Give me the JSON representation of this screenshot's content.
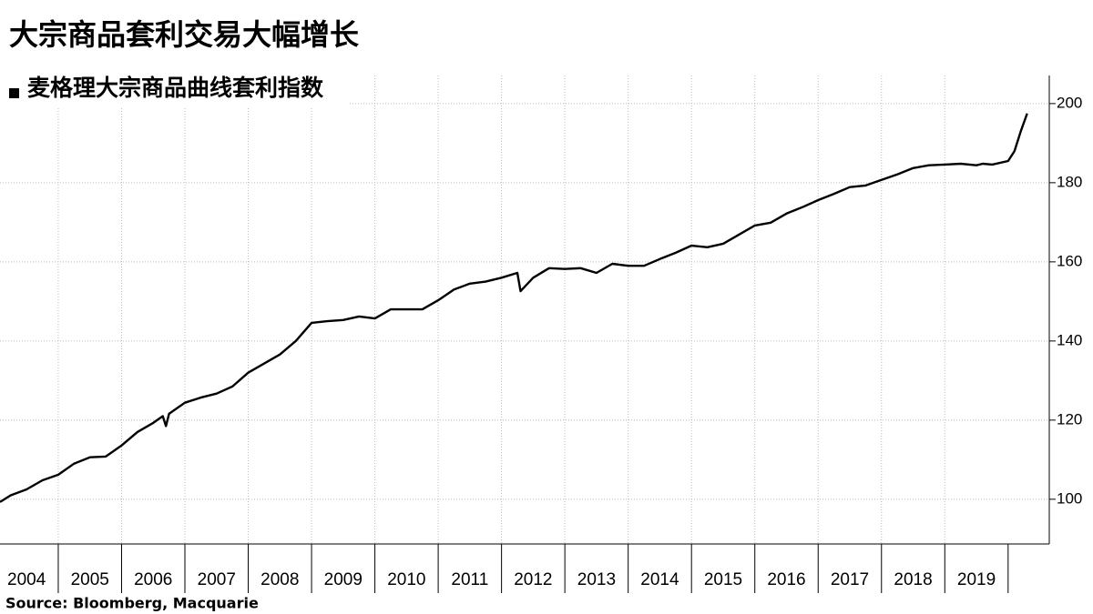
{
  "chart_data": {
    "type": "line",
    "title": "大宗商品套利交易大幅增长",
    "source": "Source:  Bloomberg, Macquarie",
    "x": [
      2004.08,
      2004.25,
      2004.5,
      2004.75,
      2005.0,
      2005.25,
      2005.5,
      2005.75,
      2006.0,
      2006.25,
      2006.5,
      2006.65,
      2006.7,
      2006.75,
      2007.0,
      2007.25,
      2007.5,
      2007.75,
      2008.0,
      2008.25,
      2008.5,
      2008.75,
      2009.0,
      2009.25,
      2009.5,
      2009.75,
      2010.0,
      2010.25,
      2010.5,
      2010.75,
      2011.0,
      2011.25,
      2011.5,
      2011.75,
      2012.0,
      2012.25,
      2012.3,
      2012.5,
      2012.75,
      2013.0,
      2013.25,
      2013.5,
      2013.75,
      2014.0,
      2014.25,
      2014.5,
      2014.75,
      2015.0,
      2015.25,
      2015.5,
      2015.75,
      2016.0,
      2016.25,
      2016.5,
      2016.75,
      2017.0,
      2017.25,
      2017.5,
      2017.75,
      2018.0,
      2018.25,
      2018.5,
      2018.75,
      2019.0,
      2019.25,
      2019.5,
      2019.6,
      2019.75,
      2020.0,
      2020.1,
      2020.2,
      2020.3
    ],
    "series": [
      {
        "name": "麦格理大宗商品曲线套利指数",
        "color": "#000000",
        "values": [
          99.3,
          101,
          102.5,
          104.8,
          106.2,
          109,
          110.6,
          110.8,
          113.6,
          117,
          119.3,
          121,
          118.5,
          121.6,
          124.4,
          125.7,
          126.7,
          128.5,
          132,
          134.3,
          136.6,
          140,
          144.6,
          145,
          145.3,
          146.2,
          145.7,
          148,
          148,
          148,
          150.3,
          153,
          154.5,
          155,
          156,
          157.2,
          152.6,
          156,
          158.4,
          158.2,
          158.4,
          157.2,
          159.5,
          159,
          159,
          160.7,
          162.3,
          164.1,
          163.7,
          164.6,
          166.9,
          169.2,
          169.9,
          172.2,
          173.8,
          175.6,
          177.2,
          178.9,
          179.3,
          180.7,
          182.1,
          183.7,
          184.4,
          184.6,
          184.8,
          184.4,
          184.8,
          184.6,
          185.5,
          188,
          193,
          197.5
        ]
      }
    ],
    "xlim": [
      2004.08,
      2020.65
    ],
    "xticks": [
      2004,
      2005,
      2006,
      2007,
      2008,
      2009,
      2010,
      2011,
      2012,
      2013,
      2014,
      2015,
      2016,
      2017,
      2018,
      2019
    ],
    "ylim": [
      88.7,
      207.1
    ],
    "yticks": [
      100,
      120,
      140,
      160,
      180,
      200
    ],
    "grid": true
  }
}
